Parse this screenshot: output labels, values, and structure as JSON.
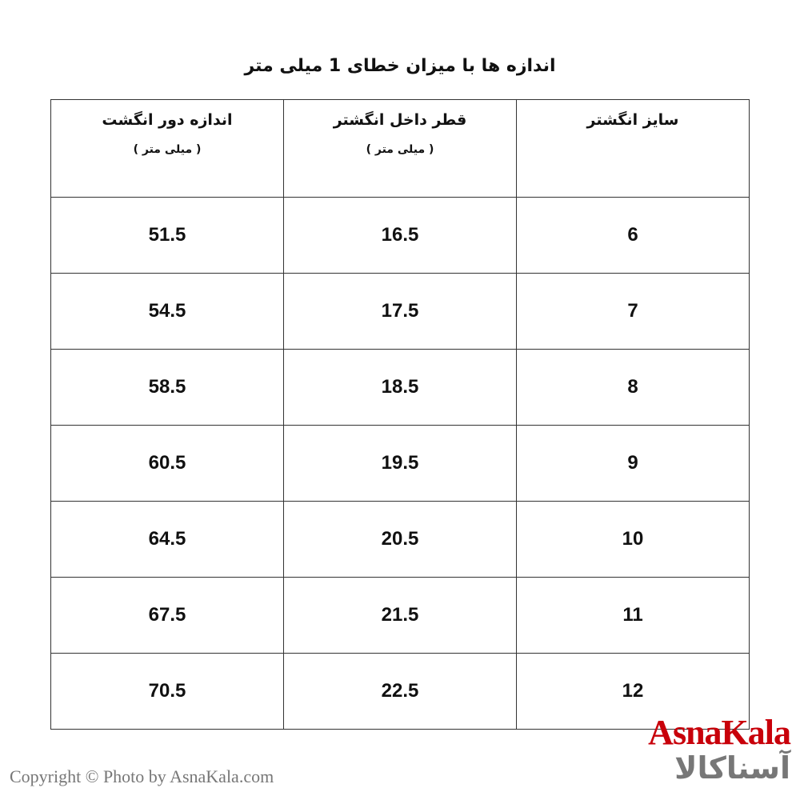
{
  "title": "اندازه ها با میزان خطای 1 میلی متر",
  "table": {
    "headers": [
      {
        "label": "سایز انگشتر",
        "unit": ""
      },
      {
        "label": "قطر داخل انگشتر",
        "unit": "( میلی متر )"
      },
      {
        "label": "اندازه دور انگشت",
        "unit": "( میلی متر )"
      }
    ],
    "rows": [
      [
        "6",
        "16.5",
        "51.5"
      ],
      [
        "7",
        "17.5",
        "54.5"
      ],
      [
        "8",
        "18.5",
        "58.5"
      ],
      [
        "9",
        "19.5",
        "60.5"
      ],
      [
        "10",
        "20.5",
        "64.5"
      ],
      [
        "11",
        "21.5",
        "67.5"
      ],
      [
        "12",
        "22.5",
        "70.5"
      ]
    ]
  },
  "logo": {
    "en": "AsnaKala",
    "fa": "آسناکالا",
    "color": "#c8000a"
  },
  "copyright": "Copyright © Photo by AsnaKala.com"
}
